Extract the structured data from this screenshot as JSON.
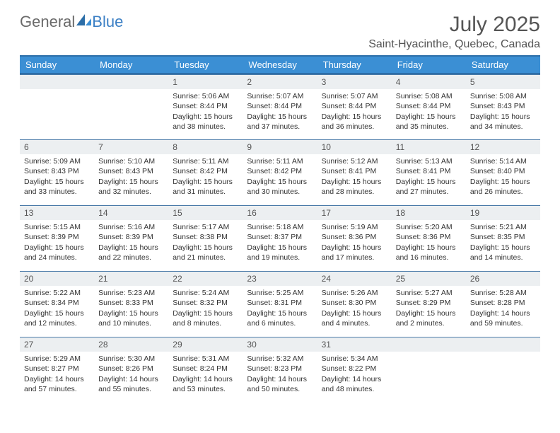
{
  "brand": {
    "general": "General",
    "blue": "Blue"
  },
  "title": "July 2025",
  "location": "Saint-Hyacinthe, Quebec, Canada",
  "colors": {
    "header_bg": "#3b8fd4",
    "header_border": "#2c6ea8",
    "daynum_bg": "#eceff1",
    "row_rule": "#4a7aa8",
    "text": "#333333",
    "title_text": "#555555",
    "white": "#ffffff"
  },
  "weekdays": [
    "Sunday",
    "Monday",
    "Tuesday",
    "Wednesday",
    "Thursday",
    "Friday",
    "Saturday"
  ],
  "weeks": [
    [
      null,
      null,
      {
        "day": "1",
        "sunrise": "Sunrise: 5:06 AM",
        "sunset": "Sunset: 8:44 PM",
        "daylight1": "Daylight: 15 hours",
        "daylight2": "and 38 minutes."
      },
      {
        "day": "2",
        "sunrise": "Sunrise: 5:07 AM",
        "sunset": "Sunset: 8:44 PM",
        "daylight1": "Daylight: 15 hours",
        "daylight2": "and 37 minutes."
      },
      {
        "day": "3",
        "sunrise": "Sunrise: 5:07 AM",
        "sunset": "Sunset: 8:44 PM",
        "daylight1": "Daylight: 15 hours",
        "daylight2": "and 36 minutes."
      },
      {
        "day": "4",
        "sunrise": "Sunrise: 5:08 AM",
        "sunset": "Sunset: 8:44 PM",
        "daylight1": "Daylight: 15 hours",
        "daylight2": "and 35 minutes."
      },
      {
        "day": "5",
        "sunrise": "Sunrise: 5:08 AM",
        "sunset": "Sunset: 8:43 PM",
        "daylight1": "Daylight: 15 hours",
        "daylight2": "and 34 minutes."
      }
    ],
    [
      {
        "day": "6",
        "sunrise": "Sunrise: 5:09 AM",
        "sunset": "Sunset: 8:43 PM",
        "daylight1": "Daylight: 15 hours",
        "daylight2": "and 33 minutes."
      },
      {
        "day": "7",
        "sunrise": "Sunrise: 5:10 AM",
        "sunset": "Sunset: 8:43 PM",
        "daylight1": "Daylight: 15 hours",
        "daylight2": "and 32 minutes."
      },
      {
        "day": "8",
        "sunrise": "Sunrise: 5:11 AM",
        "sunset": "Sunset: 8:42 PM",
        "daylight1": "Daylight: 15 hours",
        "daylight2": "and 31 minutes."
      },
      {
        "day": "9",
        "sunrise": "Sunrise: 5:11 AM",
        "sunset": "Sunset: 8:42 PM",
        "daylight1": "Daylight: 15 hours",
        "daylight2": "and 30 minutes."
      },
      {
        "day": "10",
        "sunrise": "Sunrise: 5:12 AM",
        "sunset": "Sunset: 8:41 PM",
        "daylight1": "Daylight: 15 hours",
        "daylight2": "and 28 minutes."
      },
      {
        "day": "11",
        "sunrise": "Sunrise: 5:13 AM",
        "sunset": "Sunset: 8:41 PM",
        "daylight1": "Daylight: 15 hours",
        "daylight2": "and 27 minutes."
      },
      {
        "day": "12",
        "sunrise": "Sunrise: 5:14 AM",
        "sunset": "Sunset: 8:40 PM",
        "daylight1": "Daylight: 15 hours",
        "daylight2": "and 26 minutes."
      }
    ],
    [
      {
        "day": "13",
        "sunrise": "Sunrise: 5:15 AM",
        "sunset": "Sunset: 8:39 PM",
        "daylight1": "Daylight: 15 hours",
        "daylight2": "and 24 minutes."
      },
      {
        "day": "14",
        "sunrise": "Sunrise: 5:16 AM",
        "sunset": "Sunset: 8:39 PM",
        "daylight1": "Daylight: 15 hours",
        "daylight2": "and 22 minutes."
      },
      {
        "day": "15",
        "sunrise": "Sunrise: 5:17 AM",
        "sunset": "Sunset: 8:38 PM",
        "daylight1": "Daylight: 15 hours",
        "daylight2": "and 21 minutes."
      },
      {
        "day": "16",
        "sunrise": "Sunrise: 5:18 AM",
        "sunset": "Sunset: 8:37 PM",
        "daylight1": "Daylight: 15 hours",
        "daylight2": "and 19 minutes."
      },
      {
        "day": "17",
        "sunrise": "Sunrise: 5:19 AM",
        "sunset": "Sunset: 8:36 PM",
        "daylight1": "Daylight: 15 hours",
        "daylight2": "and 17 minutes."
      },
      {
        "day": "18",
        "sunrise": "Sunrise: 5:20 AM",
        "sunset": "Sunset: 8:36 PM",
        "daylight1": "Daylight: 15 hours",
        "daylight2": "and 16 minutes."
      },
      {
        "day": "19",
        "sunrise": "Sunrise: 5:21 AM",
        "sunset": "Sunset: 8:35 PM",
        "daylight1": "Daylight: 15 hours",
        "daylight2": "and 14 minutes."
      }
    ],
    [
      {
        "day": "20",
        "sunrise": "Sunrise: 5:22 AM",
        "sunset": "Sunset: 8:34 PM",
        "daylight1": "Daylight: 15 hours",
        "daylight2": "and 12 minutes."
      },
      {
        "day": "21",
        "sunrise": "Sunrise: 5:23 AM",
        "sunset": "Sunset: 8:33 PM",
        "daylight1": "Daylight: 15 hours",
        "daylight2": "and 10 minutes."
      },
      {
        "day": "22",
        "sunrise": "Sunrise: 5:24 AM",
        "sunset": "Sunset: 8:32 PM",
        "daylight1": "Daylight: 15 hours",
        "daylight2": "and 8 minutes."
      },
      {
        "day": "23",
        "sunrise": "Sunrise: 5:25 AM",
        "sunset": "Sunset: 8:31 PM",
        "daylight1": "Daylight: 15 hours",
        "daylight2": "and 6 minutes."
      },
      {
        "day": "24",
        "sunrise": "Sunrise: 5:26 AM",
        "sunset": "Sunset: 8:30 PM",
        "daylight1": "Daylight: 15 hours",
        "daylight2": "and 4 minutes."
      },
      {
        "day": "25",
        "sunrise": "Sunrise: 5:27 AM",
        "sunset": "Sunset: 8:29 PM",
        "daylight1": "Daylight: 15 hours",
        "daylight2": "and 2 minutes."
      },
      {
        "day": "26",
        "sunrise": "Sunrise: 5:28 AM",
        "sunset": "Sunset: 8:28 PM",
        "daylight1": "Daylight: 14 hours",
        "daylight2": "and 59 minutes."
      }
    ],
    [
      {
        "day": "27",
        "sunrise": "Sunrise: 5:29 AM",
        "sunset": "Sunset: 8:27 PM",
        "daylight1": "Daylight: 14 hours",
        "daylight2": "and 57 minutes."
      },
      {
        "day": "28",
        "sunrise": "Sunrise: 5:30 AM",
        "sunset": "Sunset: 8:26 PM",
        "daylight1": "Daylight: 14 hours",
        "daylight2": "and 55 minutes."
      },
      {
        "day": "29",
        "sunrise": "Sunrise: 5:31 AM",
        "sunset": "Sunset: 8:24 PM",
        "daylight1": "Daylight: 14 hours",
        "daylight2": "and 53 minutes."
      },
      {
        "day": "30",
        "sunrise": "Sunrise: 5:32 AM",
        "sunset": "Sunset: 8:23 PM",
        "daylight1": "Daylight: 14 hours",
        "daylight2": "and 50 minutes."
      },
      {
        "day": "31",
        "sunrise": "Sunrise: 5:34 AM",
        "sunset": "Sunset: 8:22 PM",
        "daylight1": "Daylight: 14 hours",
        "daylight2": "and 48 minutes."
      },
      null,
      null
    ]
  ]
}
